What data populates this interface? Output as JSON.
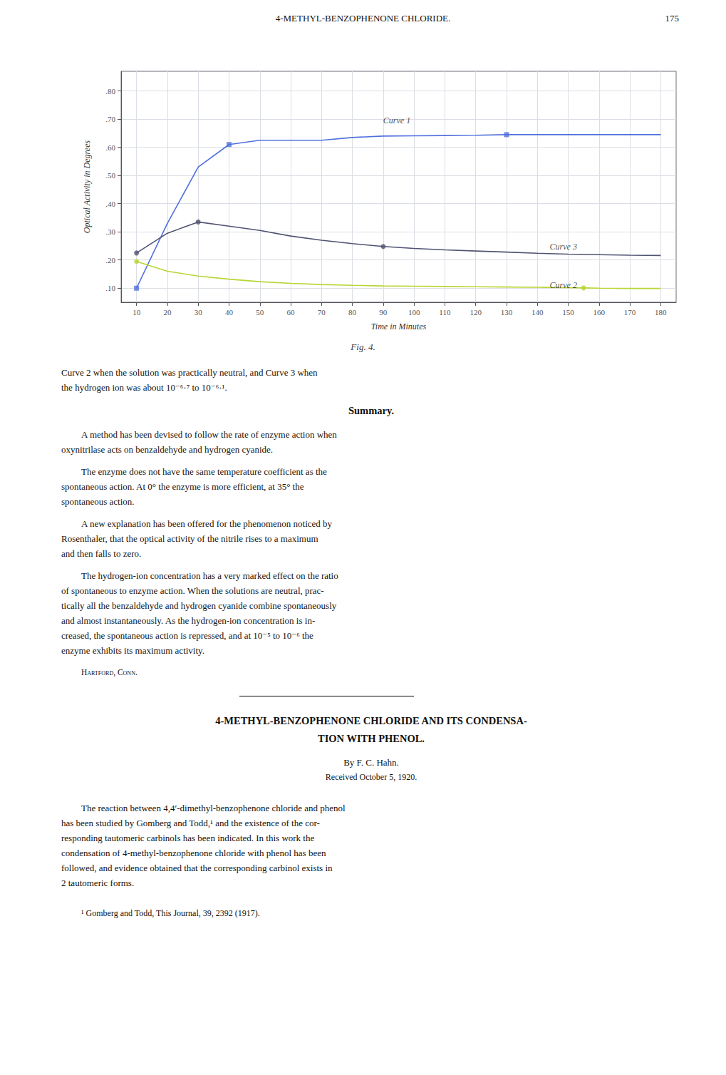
{
  "page": {
    "header": "4-METHYL-BENZOPHENONE CHLORIDE.",
    "page_number": "175",
    "caption_continued": [
      "Curve 2 when the solution was practically neutral, and Curve 3 when",
      "the hydrogen ion was about 10⁻⁶·⁷ to 10⁻⁶·¹."
    ],
    "summary_title": "Summary.",
    "summary": [
      [
        "A method has been devised to follow the rate of enzyme action when",
        "oxynitrilase acts on benzaldehyde and hydrogen cyanide."
      ],
      [
        "The enzyme does not have the same temperature coefficient as the",
        "spontaneous action.  At 0° the enzyme is more efficient, at 35° the",
        "spontaneous action."
      ],
      [
        "A new explanation has been offered for the phenomenon noticed by",
        "Rosenthaler, that the optical activity of the nitrile rises to a maximum",
        "and then falls to zero."
      ],
      [
        "The hydrogen-ion concentration has a very marked effect on the ratio",
        "of spontaneous to enzyme action.  When the solutions are neutral, prac-",
        "tically all the benzaldehyde and hydrogen cyanide combine spontaneously",
        "and almost instantaneously.  As the hydrogen-ion concentration is in-",
        "creased, the spontaneous action is repressed, and at 10⁻⁵ to 10⁻⁶ the",
        "enzyme exhibits its maximum activity."
      ]
    ],
    "place": "Hartford, Conn.",
    "article_title": [
      "4-METHYL-BENZOPHENONE CHLORIDE AND ITS CONDENSA-",
      "TION WITH PHENOL."
    ],
    "by_line": "By F. C. Hahn.",
    "received_line": "Received October 5, 1920.",
    "article": [
      [
        "The reaction between 4,4′-dimethyl-benzophenone chloride and phenol",
        "has been studied by Gomberg and Todd,¹ and the existence of the cor-",
        "responding tautomeric carbinols has been indicated.  In this work the",
        "condensation of 4-methyl-benzophenone chloride with phenol has been",
        "followed, and evidence obtained that the corresponding carbinol exists in",
        "2 tautomeric forms."
      ]
    ],
    "footnote": "¹ Gomberg and Todd, This Journal, 39, 2392 (1917)."
  },
  "chart_data": {
    "type": "line",
    "title": "Fig. 4.",
    "x_label": "Time in Minutes",
    "y_label": "Optical Activity in Degrees",
    "xlim": [
      5,
      185
    ],
    "ylim": [
      0.05,
      0.87
    ],
    "xticks": [
      10,
      20,
      30,
      40,
      50,
      60,
      70,
      80,
      90,
      100,
      110,
      120,
      130,
      140,
      150,
      160,
      170,
      180
    ],
    "yticks": [
      {
        "value": 0.1,
        "label": ".10"
      },
      {
        "value": 0.2,
        "label": ".20"
      },
      {
        "value": 0.3,
        "label": ".30"
      },
      {
        "value": 0.4,
        "label": ".40"
      },
      {
        "value": 0.5,
        "label": ".50"
      },
      {
        "value": 0.6,
        "label": ".60"
      },
      {
        "value": 0.7,
        "label": ".70"
      },
      {
        "value": 0.8,
        "label": ".80"
      }
    ],
    "grid": true,
    "series": [
      {
        "name": "Curve 1",
        "line_style": "solid",
        "x": [
          10,
          20,
          30,
          40,
          50,
          60,
          70,
          80,
          90,
          100,
          110,
          120,
          130,
          140,
          150,
          160,
          170,
          180
        ],
        "values": [
          0.1,
          0.33,
          0.53,
          0.61,
          0.625,
          0.625,
          0.625,
          0.635,
          0.64,
          0.641,
          0.642,
          0.643,
          0.645,
          0.645,
          0.645,
          0.645,
          0.645,
          0.645
        ],
        "markers": {
          "marker": "square",
          "x": [
            10,
            40,
            130
          ],
          "values": [
            0.1,
            0.61,
            0.645
          ]
        }
      },
      {
        "name": "Curve 2",
        "line_style": "solid",
        "x": [
          10,
          20,
          30,
          40,
          50,
          60,
          70,
          80,
          90,
          100,
          110,
          120,
          130,
          140,
          150,
          155,
          160,
          170,
          180
        ],
        "values": [
          0.195,
          0.16,
          0.143,
          0.132,
          0.123,
          0.117,
          0.113,
          0.11,
          0.108,
          0.107,
          0.106,
          0.105,
          0.104,
          0.103,
          0.102,
          0.101,
          0.1,
          0.099,
          0.099
        ],
        "markers": {
          "marker": "circle",
          "x": [
            10,
            155
          ],
          "values": [
            0.195,
            0.101
          ]
        }
      },
      {
        "name": "Curve 3",
        "line_style": "solid",
        "x": [
          10,
          20,
          30,
          40,
          50,
          60,
          70,
          80,
          90,
          100,
          110,
          120,
          130,
          140,
          150,
          160,
          170,
          180
        ],
        "values": [
          0.225,
          0.295,
          0.335,
          0.32,
          0.305,
          0.285,
          0.27,
          0.258,
          0.248,
          0.241,
          0.236,
          0.232,
          0.228,
          0.224,
          0.221,
          0.219,
          0.217,
          0.216
        ],
        "markers": {
          "marker": "circle",
          "x": [
            10,
            30,
            90
          ],
          "values": [
            0.225,
            0.335,
            0.248
          ]
        }
      }
    ],
    "annotations": [
      {
        "text": "Curve 1",
        "x": 90,
        "y": 0.695
      },
      {
        "text": "Curve 2",
        "x": 144,
        "y": 0.112
      },
      {
        "text": "Curve 3",
        "x": 144,
        "y": 0.248
      }
    ]
  }
}
